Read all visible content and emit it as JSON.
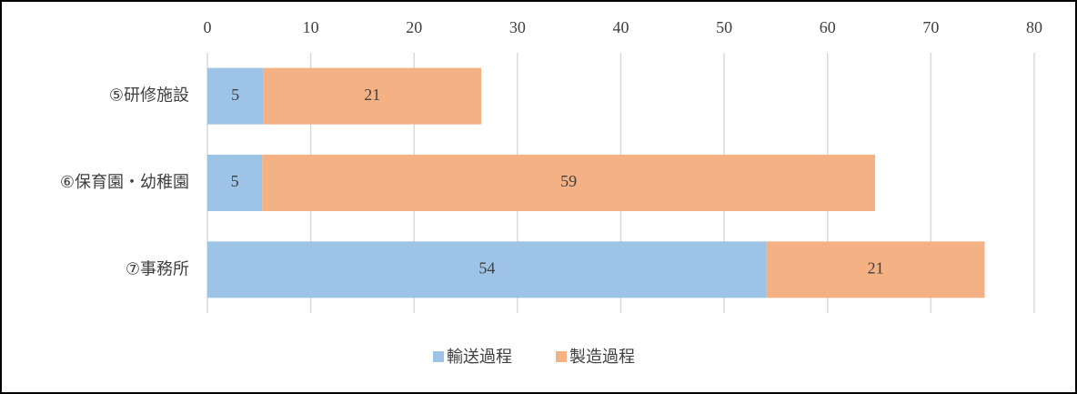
{
  "chart_data": {
    "type": "stacked-barh",
    "categories": [
      "⑤研修施設",
      "⑥保育園・幼稚園",
      "⑦事務所"
    ],
    "series": [
      {
        "name": "輸送過程",
        "color": "#9dc3e6",
        "values": [
          5.4,
          5.3,
          54.1
        ],
        "value_labels": [
          "5",
          "5",
          "54"
        ]
      },
      {
        "name": "製造過程",
        "color": "#f4b183",
        "values": [
          21.1,
          59.3,
          21.1
        ],
        "value_labels": [
          "21",
          "59",
          "21"
        ]
      }
    ],
    "xlim": [
      0,
      80
    ],
    "xticks": [
      0,
      10,
      20,
      30,
      40,
      50,
      60,
      70,
      80
    ],
    "grid": true,
    "legend": "bottom"
  }
}
